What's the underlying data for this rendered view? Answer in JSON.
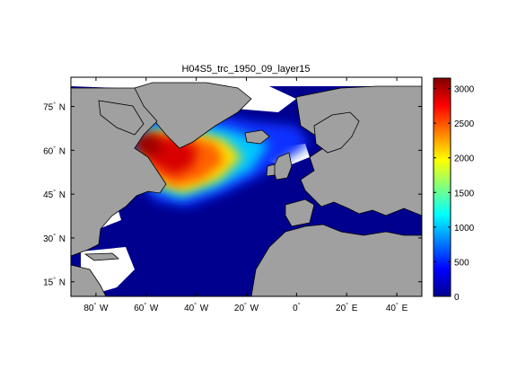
{
  "title": "H04S5_trc_1950_09_layer15",
  "lat_ticks": [
    {
      "deg": "75",
      "hemi": "N",
      "value": 75
    },
    {
      "deg": "60",
      "hemi": "N",
      "value": 60
    },
    {
      "deg": "45",
      "hemi": "N",
      "value": 45
    },
    {
      "deg": "30",
      "hemi": "N",
      "value": 30
    },
    {
      "deg": "15",
      "hemi": "N",
      "value": 15
    }
  ],
  "lon_ticks": [
    {
      "deg": "80",
      "hemi": "W",
      "value": -80
    },
    {
      "deg": "60",
      "hemi": "W",
      "value": -60
    },
    {
      "deg": "40",
      "hemi": "W",
      "value": -40
    },
    {
      "deg": "20",
      "hemi": "W",
      "value": -20
    },
    {
      "deg": "0",
      "hemi": "",
      "value": 0
    },
    {
      "deg": "20",
      "hemi": "E",
      "value": 20
    },
    {
      "deg": "40",
      "hemi": "E",
      "value": 40
    }
  ],
  "map_extent": {
    "lon": [
      -90,
      50
    ],
    "lat": [
      10,
      85
    ]
  },
  "colorbar": {
    "ticks": [
      "0",
      "500",
      "1000",
      "1500",
      "2000",
      "2500",
      "3000"
    ],
    "tick_values": [
      0,
      500,
      1000,
      1500,
      2000,
      2500,
      3000
    ],
    "range": [
      0,
      3150
    ],
    "colormap": "jet"
  },
  "colors": {
    "ocean_low": "#00008f",
    "land": "#a0a0a0",
    "no_data": "#ffffff",
    "frame": "#000000"
  }
}
